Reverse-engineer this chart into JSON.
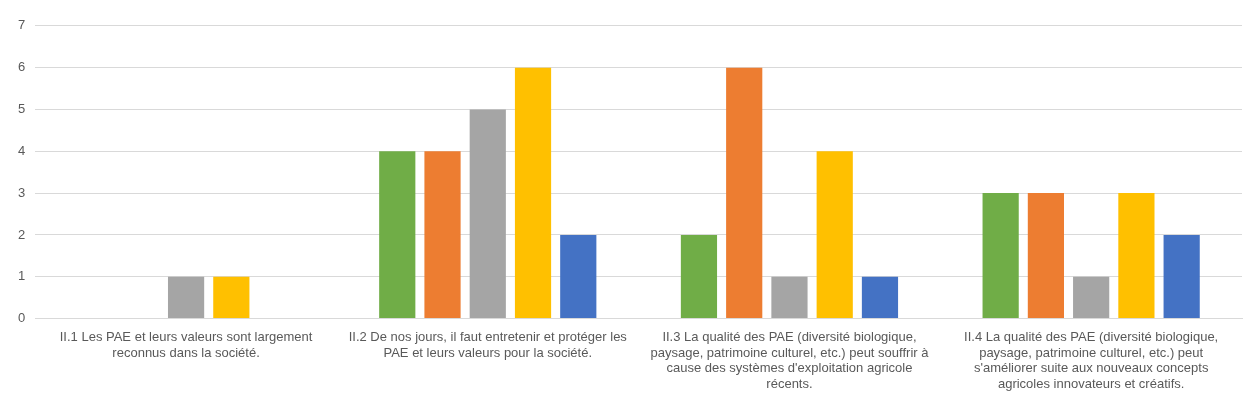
{
  "chart_data": {
    "type": "bar",
    "categories": [
      "II.1 Les PAE et leurs valeurs sont largement reconnus dans la société.",
      "II.2 De nos jours, il faut entretenir et protéger les PAE et leurs valeurs pour la société.",
      "II.3 La qualité des PAE (diversité biologique, paysage, patrimoine culturel, etc.) peut souffrir à cause des systèmes d'exploitation agricole récents.",
      "II.4 La qualité des PAE (diversité biologique, paysage, patrimoine culturel, etc.) peut s'améliorer suite aux nouveaux concepts agricoles innovateurs et créatifs."
    ],
    "series": [
      {
        "color": "#70ad47",
        "values": [
          0,
          4,
          2,
          3
        ]
      },
      {
        "color": "#ed7d31",
        "values": [
          0,
          4,
          6,
          3
        ]
      },
      {
        "color": "#a5a5a5",
        "values": [
          1,
          5,
          1,
          1
        ]
      },
      {
        "color": "#ffc000",
        "values": [
          1,
          6,
          4,
          3
        ]
      },
      {
        "color": "#4472c4",
        "values": [
          0,
          2,
          1,
          2
        ]
      }
    ],
    "ylim": [
      0,
      7
    ],
    "yticks": [
      0,
      1,
      2,
      3,
      4,
      5,
      6,
      7
    ],
    "grid": "y",
    "legend": false
  }
}
